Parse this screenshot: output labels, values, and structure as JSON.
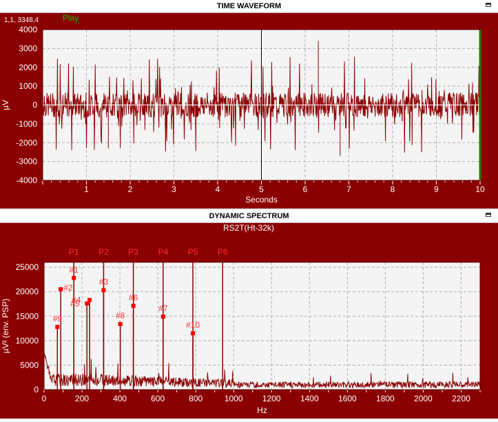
{
  "top_panel": {
    "title": "TIME WAVEFORM",
    "cursor_readout": "1,1, 3348,4",
    "play_label": "Play"
  },
  "bottom_panel": {
    "title": "DYNAMIC SPECTRUM",
    "subtitle": "RS2T(Ht-32k)"
  },
  "colors": {
    "panel_bg": "#8b0000",
    "plot_bg": "#f4f4f4",
    "trace": "#8b0000",
    "marker": "#ff0000",
    "label": "#ff3030",
    "play": "#00cc00"
  },
  "chart_data": [
    {
      "type": "line",
      "title": "TIME WAVEFORM",
      "xlabel": "Seconds",
      "ylabel": "µV",
      "xlim": [
        0,
        10
      ],
      "ylim": [
        -4000,
        4000
      ],
      "xticks": [
        1,
        2,
        3,
        4,
        5,
        6,
        7,
        8,
        9,
        10
      ],
      "yticks": [
        4000,
        3000,
        2000,
        1000,
        0,
        -1000,
        -2000,
        -3000,
        -4000
      ],
      "grid": true,
      "cursor_x": 5,
      "end_marker_x": 10,
      "signal": {
        "amplitude_typical": 1200,
        "amplitude_peak": 3500,
        "spikes": [
          {
            "x": 6.3,
            "y": 3400
          },
          {
            "x": 6.8,
            "y": -2700
          },
          {
            "x": 1.5,
            "y": -2300
          }
        ]
      }
    },
    {
      "type": "line",
      "title": "DYNAMIC SPECTRUM",
      "subtitle": "RS2T(Ht-32k)",
      "xlabel": "Hz",
      "ylabel": "µV² (env. PSP)",
      "xlim": [
        0,
        2300
      ],
      "ylim": [
        0,
        26000
      ],
      "xticks": [
        0,
        200,
        400,
        600,
        800,
        1000,
        1200,
        1400,
        1600,
        1800,
        2000,
        2200
      ],
      "yticks": [
        0,
        5000,
        10000,
        15000,
        20000,
        25000
      ],
      "grid": true,
      "harmonics": [
        {
          "label": "P1",
          "x": 157
        },
        {
          "label": "P2",
          "x": 314
        },
        {
          "label": "P3",
          "x": 471
        },
        {
          "label": "P4",
          "x": 628
        },
        {
          "label": "P5",
          "x": 785
        },
        {
          "label": "P6",
          "x": 942
        }
      ],
      "peaks": [
        {
          "label": "#1",
          "x": 157,
          "y": 22800
        },
        {
          "label": "#2",
          "x": 88,
          "y": 20500
        },
        {
          "label": "#3",
          "x": 314,
          "y": 20300
        },
        {
          "label": "#4",
          "x": 240,
          "y": 18300
        },
        {
          "label": "#5",
          "x": 226,
          "y": 17600
        },
        {
          "label": "#6",
          "x": 471,
          "y": 17100
        },
        {
          "label": "#7",
          "x": 628,
          "y": 14900
        },
        {
          "label": "#8",
          "x": 402,
          "y": 13400
        },
        {
          "label": "#9",
          "x": 70,
          "y": 12800
        },
        {
          "label": "#10",
          "x": 785,
          "y": 11500
        }
      ],
      "noise": {
        "low_band_level": 2500,
        "low_band_max_hz": 1000,
        "high_band_level": 1200
      }
    }
  ]
}
